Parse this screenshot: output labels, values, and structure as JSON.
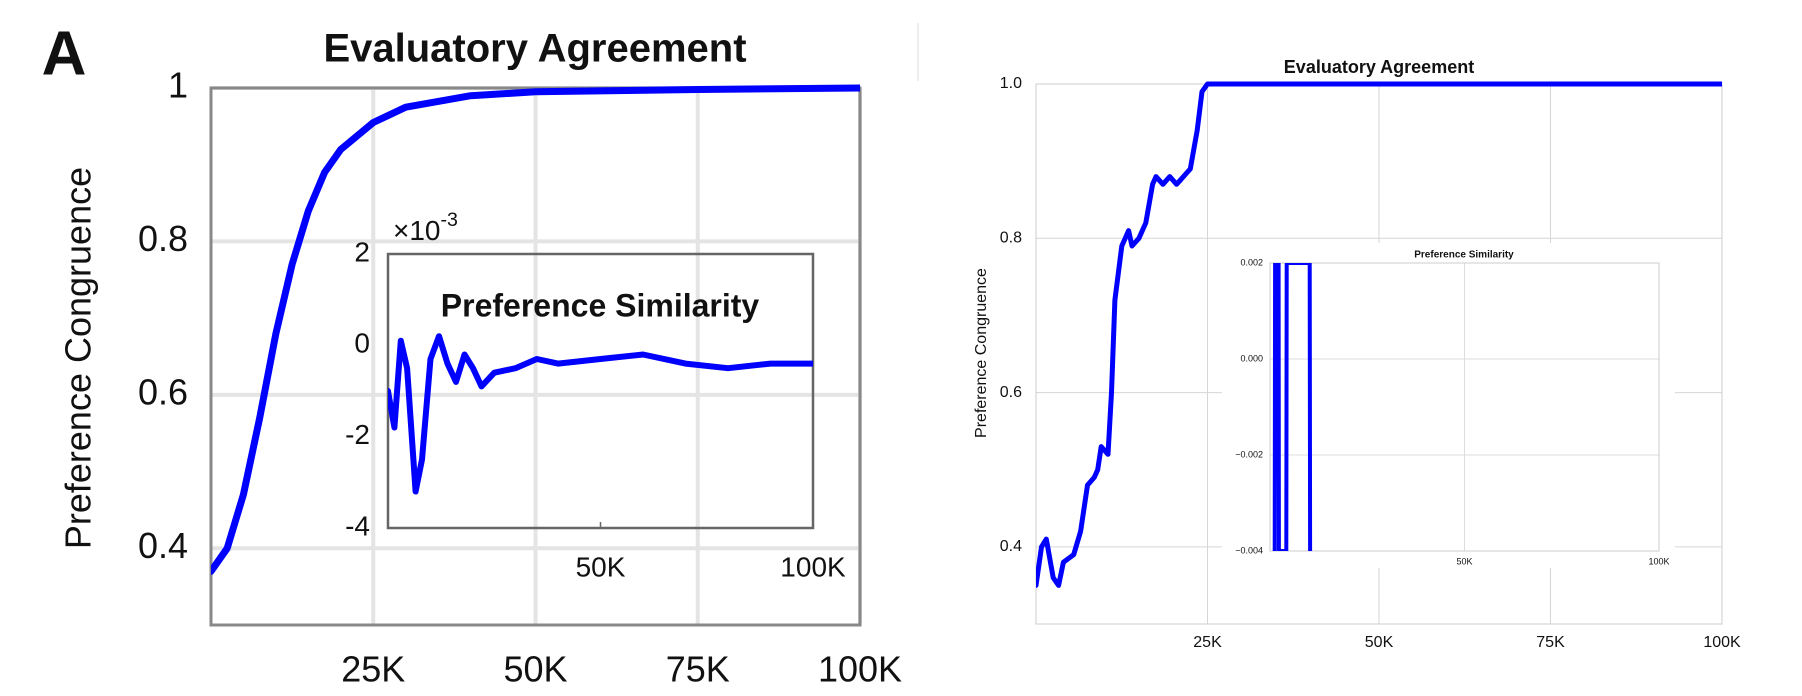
{
  "chart_data": [
    {
      "type": "line",
      "panel_label": "A",
      "title": "Evaluatory Agreement",
      "ylabel": "Preference Congruence",
      "xlim": [
        0,
        100000
      ],
      "ylim": [
        0.3,
        1
      ],
      "xticks": [
        {
          "value": 25000,
          "label": "25K"
        },
        {
          "value": 50000,
          "label": "50K"
        },
        {
          "value": 75000,
          "label": "75K"
        },
        {
          "value": 100000,
          "label": "100K"
        }
      ],
      "yticks": [
        0.4,
        0.6,
        0.8,
        1
      ],
      "grid": true,
      "series": [
        {
          "color": "#0000ff",
          "x": [
            0,
            2500,
            5000,
            7500,
            10000,
            12500,
            15000,
            17500,
            20000,
            25000,
            30000,
            40000,
            50000,
            75000,
            100000
          ],
          "values": [
            0.37,
            0.4,
            0.47,
            0.57,
            0.68,
            0.77,
            0.84,
            0.89,
            0.92,
            0.955,
            0.975,
            0.99,
            0.995,
            0.998,
            1.0
          ]
        }
      ],
      "inset": {
        "type": "line",
        "title": "Preference Similarity",
        "exponent_base": "×10",
        "exponent": "-3",
        "xlim": [
          0,
          100000
        ],
        "ylim": [
          -4,
          2
        ],
        "xticks": [
          {
            "value": 50000,
            "label": "50K"
          },
          {
            "value": 100000,
            "label": "100K"
          }
        ],
        "yticks": [
          2,
          0,
          -2,
          -4
        ],
        "grid": false,
        "series": [
          {
            "color": "#0000ff",
            "x": [
              0,
              1500,
              3000,
              4500,
              6500,
              8000,
              10000,
              12000,
              14000,
              16000,
              18000,
              20000,
              22000,
              25000,
              30000,
              35000,
              40000,
              50000,
              60000,
              70000,
              80000,
              90000,
              100000
            ],
            "values": [
              -1,
              -1.8,
              0.1,
              -0.5,
              -3.2,
              -2.5,
              -0.3,
              0.2,
              -0.4,
              -0.8,
              -0.2,
              -0.5,
              -0.9,
              -0.6,
              -0.5,
              -0.3,
              -0.4,
              -0.3,
              -0.2,
              -0.4,
              -0.5,
              -0.4,
              -0.4
            ]
          }
        ]
      }
    },
    {
      "type": "line",
      "title": "Evaluatory Agreement",
      "ylabel": "Preference Congruence",
      "xlim": [
        0,
        100000
      ],
      "ylim": [
        0.3,
        1
      ],
      "xticks": [
        {
          "value": 25000,
          "label": "25K"
        },
        {
          "value": 50000,
          "label": "50K"
        },
        {
          "value": 75000,
          "label": "75K"
        },
        {
          "value": 100000,
          "label": "100K"
        }
      ],
      "yticks": [
        {
          "value": 1,
          "label": "1.0"
        },
        0.8,
        0.6,
        0.4
      ],
      "grid": true,
      "series": [
        {
          "color": "#0000ff",
          "x": [
            0,
            800,
            1500,
            2500,
            3300,
            4000,
            5500,
            6500,
            7500,
            8500,
            9000,
            9500,
            10500,
            11000,
            11500,
            12500,
            13500,
            14000,
            15000,
            16000,
            17000,
            17500,
            18500,
            19500,
            20500,
            21500,
            22500,
            23500,
            24200,
            25000,
            100000
          ],
          "values": [
            0.35,
            0.4,
            0.41,
            0.36,
            0.35,
            0.38,
            0.39,
            0.42,
            0.48,
            0.49,
            0.5,
            0.53,
            0.52,
            0.6,
            0.72,
            0.79,
            0.81,
            0.79,
            0.8,
            0.82,
            0.87,
            0.88,
            0.87,
            0.88,
            0.87,
            0.88,
            0.89,
            0.94,
            0.99,
            1.0,
            1.0
          ]
        }
      ],
      "inset": {
        "type": "line",
        "title": "Preference Similarity",
        "xlim": [
          0,
          100000
        ],
        "ylim": [
          -0.004,
          0.002
        ],
        "xticks": [
          {
            "value": 50000,
            "label": "50K"
          },
          {
            "value": 100000,
            "label": "100K"
          }
        ],
        "yticks": [
          0.002,
          {
            "value": 0,
            "label": "0.000"
          },
          {
            "value": -0.002,
            "label": "−0.002"
          },
          {
            "value": -0.004,
            "label": "−0.004"
          }
        ],
        "grid": true,
        "series": [
          {
            "color": "#0000ff",
            "x": [
              1200,
              1300,
              2200,
              2300,
              4200,
              4300,
              10200,
              10300
            ],
            "values": [
              -0.004,
              0.002,
              0.002,
              -0.004,
              -0.004,
              0.002,
              0.002,
              -0.004
            ]
          }
        ]
      }
    }
  ]
}
